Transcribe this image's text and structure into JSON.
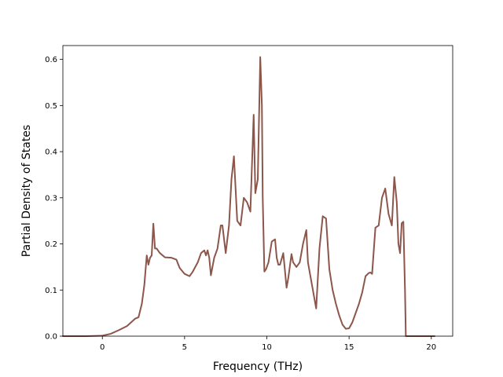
{
  "chart_data": {
    "type": "line",
    "title": "",
    "xlabel": "Frequency (THz)",
    "ylabel": "Partial Density of States",
    "xlim": [
      -2.4,
      21.3
    ],
    "ylim": [
      0.0,
      0.63
    ],
    "xticks": [
      0,
      5,
      10,
      15,
      20
    ],
    "xtick_labels": [
      "0",
      "5",
      "10",
      "15",
      "20"
    ],
    "yticks": [
      0.0,
      0.1,
      0.2,
      0.3,
      0.4,
      0.5,
      0.6
    ],
    "ytick_labels": [
      "0.0",
      "0.1",
      "0.2",
      "0.3",
      "0.4",
      "0.5",
      "0.6"
    ],
    "grid": false,
    "legend": "none",
    "series": [
      {
        "color": "#8c564b",
        "x": [
          -2.4,
          -1.0,
          0.0,
          0.5,
          1.0,
          1.5,
          2.0,
          2.2,
          2.4,
          2.55,
          2.7,
          2.8,
          2.9,
          3.0,
          3.1,
          3.2,
          3.3,
          3.5,
          3.8,
          4.2,
          4.5,
          4.7,
          5.0,
          5.3,
          5.5,
          5.8,
          6.0,
          6.2,
          6.3,
          6.4,
          6.5,
          6.6,
          6.8,
          7.0,
          7.2,
          7.3,
          7.5,
          7.7,
          7.85,
          8.0,
          8.2,
          8.4,
          8.6,
          8.8,
          9.0,
          9.2,
          9.3,
          9.45,
          9.6,
          9.7,
          9.75,
          9.85,
          9.95,
          10.1,
          10.3,
          10.5,
          10.6,
          10.7,
          10.8,
          11.0,
          11.2,
          11.3,
          11.5,
          11.6,
          11.8,
          12.0,
          12.2,
          12.4,
          12.5,
          12.7,
          12.9,
          13.0,
          13.2,
          13.4,
          13.6,
          13.8,
          14.0,
          14.2,
          14.4,
          14.6,
          14.8,
          15.0,
          15.2,
          15.4,
          15.6,
          15.8,
          16.0,
          16.2,
          16.3,
          16.4,
          16.6,
          16.8,
          17.0,
          17.2,
          17.4,
          17.6,
          17.75,
          17.9,
          18.0,
          18.1,
          18.2,
          18.3,
          18.4,
          18.45,
          18.5,
          19.0,
          20.2
        ],
        "y": [
          0.0,
          0.0,
          0.001,
          0.005,
          0.013,
          0.022,
          0.038,
          0.041,
          0.07,
          0.11,
          0.175,
          0.155,
          0.17,
          0.175,
          0.244,
          0.19,
          0.19,
          0.18,
          0.171,
          0.17,
          0.166,
          0.148,
          0.135,
          0.13,
          0.14,
          0.16,
          0.18,
          0.186,
          0.175,
          0.186,
          0.17,
          0.132,
          0.17,
          0.19,
          0.24,
          0.24,
          0.18,
          0.24,
          0.34,
          0.39,
          0.25,
          0.24,
          0.3,
          0.29,
          0.27,
          0.48,
          0.31,
          0.34,
          0.605,
          0.5,
          0.3,
          0.14,
          0.145,
          0.16,
          0.205,
          0.21,
          0.17,
          0.155,
          0.155,
          0.18,
          0.105,
          0.125,
          0.178,
          0.16,
          0.15,
          0.16,
          0.2,
          0.23,
          0.16,
          0.12,
          0.08,
          0.06,
          0.19,
          0.26,
          0.255,
          0.145,
          0.1,
          0.07,
          0.045,
          0.025,
          0.016,
          0.017,
          0.03,
          0.05,
          0.07,
          0.095,
          0.13,
          0.137,
          0.138,
          0.135,
          0.235,
          0.24,
          0.3,
          0.32,
          0.265,
          0.24,
          0.345,
          0.29,
          0.2,
          0.18,
          0.245,
          0.248,
          0.1,
          0.0,
          0.0,
          0.0,
          0.0
        ]
      }
    ]
  }
}
